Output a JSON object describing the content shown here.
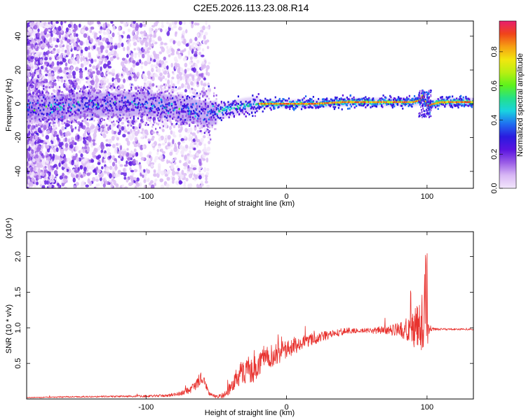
{
  "title": "C2E5.2026.113.23.08.R14",
  "chart_data": [
    {
      "type": "heatmap",
      "name": "spectrogram",
      "xlabel": "Height of straight line (km)",
      "ylabel": "Frequency (Hz)",
      "xlim": [
        -185,
        133
      ],
      "ylim": [
        -50,
        49
      ],
      "xticks": [
        -100,
        0,
        100
      ],
      "xtick_labels": [
        "-100",
        "0",
        "100"
      ],
      "yticks": [
        -40,
        -20,
        0,
        20,
        40
      ],
      "ytick_labels": [
        "-40",
        "-20",
        "0",
        "20",
        "40"
      ],
      "ridge": {
        "x": [
          -185,
          -150,
          -100,
          -80,
          -62,
          -55,
          -50,
          -45,
          -40,
          -30,
          -20,
          -10,
          0,
          20,
          40,
          60,
          80,
          90,
          95,
          97,
          100,
          110,
          133
        ],
        "freq": [
          -3,
          -1,
          0,
          -2,
          -5,
          -6,
          -5,
          -4,
          -3,
          -1,
          0,
          0,
          0,
          0,
          1,
          1,
          1,
          1,
          2,
          5,
          -1,
          1,
          1
        ]
      },
      "colorbar": {
        "label": "Normalized spectral amplitude",
        "range": [
          0,
          0.98
        ],
        "ticks": [
          0.0,
          0.2,
          0.4,
          0.6,
          0.8
        ],
        "tick_labels": [
          "0.0",
          "0.2",
          "0.4",
          "0.6",
          "0.8"
        ],
        "colors": [
          "#f2e6fb",
          "#d9b8f5",
          "#9a5ce6",
          "#5a14e0",
          "#2a1adf",
          "#1f6ef0",
          "#19d3e0",
          "#23e08a",
          "#5df21c",
          "#b8ef12",
          "#f2e60f",
          "#f6a013",
          "#f0441a",
          "#e81e6e"
        ]
      }
    },
    {
      "type": "line",
      "name": "snr",
      "color": "#e8322e",
      "xlabel": "Height of straight line (km)",
      "ylabel": "SNR (10 * v/v)",
      "scale_label": "(x10⁴)",
      "xlim": [
        -185,
        133
      ],
      "ylim": [
        0,
        2.35
      ],
      "xticks": [
        -100,
        0,
        100
      ],
      "xtick_labels": [
        "-100",
        "0",
        "100"
      ],
      "yticks": [
        0.5,
        1.0,
        1.5,
        2.0
      ],
      "ytick_labels": [
        "0.5",
        "1.0",
        "1.5",
        "2.0"
      ],
      "envelope": {
        "x": [
          -185,
          -150,
          -100,
          -85,
          -75,
          -70,
          -65,
          -62,
          -60,
          -57,
          -55,
          -50,
          -45,
          -42,
          -38,
          -35,
          -30,
          -25,
          -20,
          -15,
          -10,
          0,
          10,
          20,
          30,
          40,
          50,
          60,
          70,
          80,
          85,
          90,
          94,
          96,
          98,
          99,
          100,
          101,
          102,
          105,
          110,
          120,
          133
        ],
        "base": [
          0.02,
          0.03,
          0.04,
          0.05,
          0.08,
          0.12,
          0.18,
          0.28,
          0.3,
          0.18,
          0.08,
          0.03,
          0.05,
          0.1,
          0.22,
          0.32,
          0.38,
          0.42,
          0.45,
          0.55,
          0.6,
          0.7,
          0.78,
          0.85,
          0.9,
          0.95,
          0.96,
          0.96,
          0.97,
          0.97,
          0.98,
          0.99,
          1.0,
          1.05,
          1.2,
          1.7,
          1.0,
          0.98,
          0.98,
          0.98,
          0.98,
          0.98,
          0.98
        ],
        "spread": [
          0.005,
          0.01,
          0.015,
          0.02,
          0.03,
          0.05,
          0.07,
          0.1,
          0.08,
          0.05,
          0.03,
          0.02,
          0.04,
          0.08,
          0.12,
          0.15,
          0.18,
          0.2,
          0.2,
          0.18,
          0.16,
          0.13,
          0.1,
          0.08,
          0.06,
          0.05,
          0.04,
          0.04,
          0.06,
          0.1,
          0.15,
          0.25,
          0.35,
          0.4,
          0.5,
          0.6,
          0.4,
          0.15,
          0.03,
          0.02,
          0.015,
          0.012,
          0.01
        ]
      }
    }
  ]
}
